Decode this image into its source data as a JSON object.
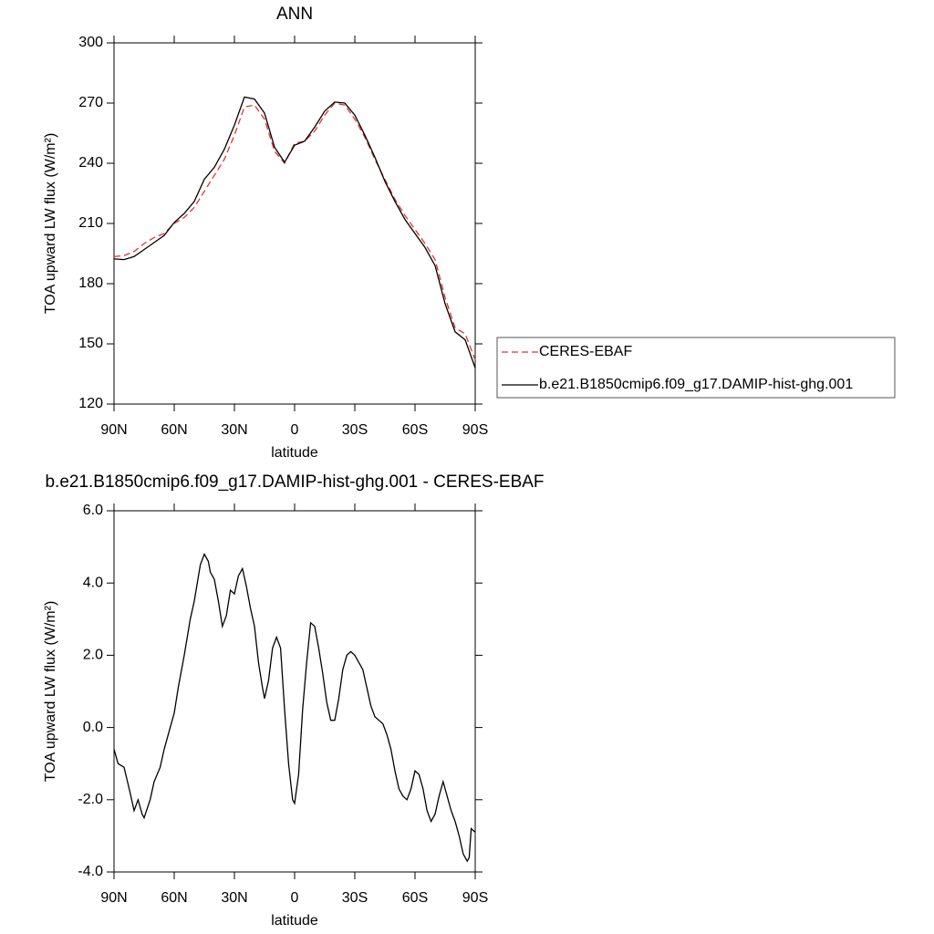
{
  "chart_data": [
    {
      "type": "line",
      "title": "ANN",
      "xlabel": "latitude",
      "ylabel": "TOA upward LW flux (W/m²)",
      "xlim": [
        90,
        -90
      ],
      "xticks": [
        {
          "value": 90,
          "label": "90N"
        },
        {
          "value": 60,
          "label": "60N"
        },
        {
          "value": 30,
          "label": "30N"
        },
        0,
        {
          "value": -30,
          "label": "30S"
        },
        {
          "value": -60,
          "label": "60S"
        },
        {
          "value": -90,
          "label": "90S"
        }
      ],
      "ylim": [
        120,
        300
      ],
      "yticks": [
        120,
        150,
        180,
        210,
        240,
        270,
        300
      ],
      "legend": "right",
      "x": [
        90,
        85,
        80,
        75,
        70,
        65,
        60,
        55,
        50,
        45,
        40,
        35,
        30,
        25,
        20,
        15,
        10,
        5,
        0,
        -5,
        -10,
        -15,
        -20,
        -25,
        -30,
        -35,
        -40,
        -45,
        -50,
        -55,
        -60,
        -65,
        -70,
        -75,
        -80,
        -85,
        -90
      ],
      "series": [
        {
          "name": "CERES-EBAF",
          "color": "#e8302e",
          "dash": true,
          "values": [
            193.5,
            194,
            196,
            200,
            203,
            205,
            210,
            213,
            218,
            226,
            234,
            242,
            254,
            268,
            269,
            262,
            246,
            240,
            250,
            251,
            256,
            264,
            270,
            269,
            262,
            253,
            242,
            232,
            222,
            214,
            207,
            200,
            192,
            173,
            158,
            155,
            142
          ]
        },
        {
          "name": "b.e21.B1850cmip6.f09_g17.DAMIP-hist-ghg.001",
          "color": "#000000",
          "dash": false,
          "values": [
            192.3,
            192,
            193.5,
            197,
            200.5,
            204,
            210.5,
            215,
            221,
            232,
            238,
            247,
            259,
            273,
            272,
            265,
            248,
            240.5,
            249,
            251,
            258,
            266,
            270.5,
            270,
            264,
            254,
            243,
            231,
            221,
            212,
            205,
            198,
            189,
            170,
            156,
            152,
            138
          ]
        }
      ]
    },
    {
      "type": "line",
      "title": "b.e21.B1850cmip6.f09_g17.DAMIP-hist-ghg.001 - CERES-EBAF",
      "xlabel": "latitude",
      "ylabel": "TOA upward LW flux (W/m²)",
      "xlim": [
        90,
        -90
      ],
      "xticks": [
        {
          "value": 90,
          "label": "90N"
        },
        {
          "value": 60,
          "label": "60N"
        },
        {
          "value": 30,
          "label": "30N"
        },
        0,
        {
          "value": -30,
          "label": "30S"
        },
        {
          "value": -60,
          "label": "60S"
        },
        {
          "value": -90,
          "label": "90S"
        }
      ],
      "ylim": [
        -4,
        6
      ],
      "yticks": [
        {
          "value": -4,
          "label": "-4.0"
        },
        {
          "value": -2,
          "label": "-2.0"
        },
        {
          "value": 0,
          "label": "0.0"
        },
        {
          "value": 2,
          "label": "2.0"
        },
        {
          "value": 4,
          "label": "4.0"
        },
        {
          "value": 6,
          "label": "6.0"
        }
      ],
      "x": [
        90,
        88,
        85,
        82,
        80,
        78,
        76,
        75,
        72,
        70,
        67,
        65,
        62,
        60,
        58,
        55,
        52,
        50,
        47,
        45,
        43,
        42,
        40,
        38,
        36,
        34,
        32,
        30,
        28,
        26,
        24,
        22,
        20,
        18,
        16,
        15,
        13,
        11,
        9,
        7,
        5,
        3,
        1,
        0,
        -2,
        -4,
        -6,
        -8,
        -10,
        -12,
        -14,
        -16,
        -18,
        -20,
        -22,
        -24,
        -26,
        -28,
        -30,
        -32,
        -34,
        -36,
        -38,
        -40,
        -42,
        -44,
        -46,
        -48,
        -50,
        -52,
        -54,
        -56,
        -58,
        -60,
        -62,
        -64,
        -66,
        -68,
        -70,
        -72,
        -74,
        -76,
        -78,
        -80,
        -82,
        -84,
        -86,
        -87,
        -88,
        -90
      ],
      "series": [
        {
          "color": "#000000",
          "dash": false,
          "values": [
            -0.6,
            -1.0,
            -1.1,
            -1.8,
            -2.3,
            -2.0,
            -2.4,
            -2.5,
            -2.0,
            -1.5,
            -1.1,
            -0.6,
            0.0,
            0.4,
            1.1,
            2.0,
            3.0,
            3.5,
            4.5,
            4.8,
            4.6,
            4.3,
            4.1,
            3.5,
            2.8,
            3.1,
            3.8,
            3.7,
            4.2,
            4.4,
            3.9,
            3.3,
            2.8,
            1.8,
            1.1,
            0.8,
            1.3,
            2.2,
            2.5,
            2.2,
            0.5,
            -1.0,
            -2.0,
            -2.1,
            -1.3,
            0.5,
            1.8,
            2.9,
            2.8,
            2.2,
            1.5,
            0.7,
            0.2,
            0.2,
            0.8,
            1.6,
            2.0,
            2.1,
            2.0,
            1.8,
            1.6,
            1.1,
            0.6,
            0.3,
            0.2,
            0.1,
            -0.2,
            -0.6,
            -1.2,
            -1.7,
            -1.9,
            -2.0,
            -1.7,
            -1.2,
            -1.3,
            -1.7,
            -2.3,
            -2.6,
            -2.4,
            -1.9,
            -1.5,
            -1.9,
            -2.3,
            -2.6,
            -3.0,
            -3.5,
            -3.7,
            -3.6,
            -2.8,
            -2.9
          ]
        }
      ]
    }
  ]
}
